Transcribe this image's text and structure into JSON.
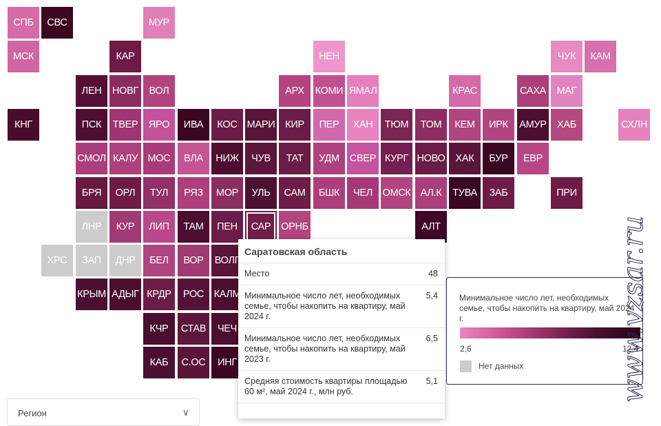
{
  "colors": {
    "legend_gradient": [
      "#ea85c0",
      "#c94f90",
      "#8c2a5e",
      "#4a0f30",
      "#2a0418"
    ],
    "no_data": "#cccccc"
  },
  "regions": [
    {
      "code": "СПБ",
      "col": 0,
      "row": 0,
      "color": "#d76aa8"
    },
    {
      "code": "СВС",
      "col": 1,
      "row": 0,
      "color": "#3c0820"
    },
    {
      "code": "МУР",
      "col": 4,
      "row": 0,
      "color": "#e07fb8"
    },
    {
      "code": "МСК",
      "col": 0,
      "row": 1,
      "color": "#cf65a2"
    },
    {
      "code": "КАР",
      "col": 3,
      "row": 1,
      "color": "#6e1a46"
    },
    {
      "code": "НЕН",
      "col": 9,
      "row": 1,
      "color": "#ee96cb"
    },
    {
      "code": "ЧУК",
      "col": 16,
      "row": 1,
      "color": "#e68ac2"
    },
    {
      "code": "КАМ",
      "col": 17,
      "row": 1,
      "color": "#d670ac"
    },
    {
      "code": "ЛЕН",
      "col": 2,
      "row": 2,
      "color": "#560f34"
    },
    {
      "code": "НОВГ",
      "col": 3,
      "row": 2,
      "color": "#8b2c5f"
    },
    {
      "code": "ВОЛ",
      "col": 4,
      "row": 2,
      "color": "#b1447f"
    },
    {
      "code": "АРХ",
      "col": 8,
      "row": 2,
      "color": "#b4437f"
    },
    {
      "code": "КОМИ",
      "col": 9,
      "row": 2,
      "color": "#c1508f"
    },
    {
      "code": "ЯМАЛ",
      "col": 10,
      "row": 2,
      "color": "#e77fbd"
    },
    {
      "code": "КРАС",
      "col": 13,
      "row": 2,
      "color": "#d56aa8"
    },
    {
      "code": "САХА",
      "col": 15,
      "row": 2,
      "color": "#ac3f7a"
    },
    {
      "code": "МАГ",
      "col": 16,
      "row": 2,
      "color": "#e284bd"
    },
    {
      "code": "КНГ",
      "col": 0,
      "row": 3,
      "color": "#4a0c2c"
    },
    {
      "code": "ПСК",
      "col": 2,
      "row": 3,
      "color": "#4d0e30"
    },
    {
      "code": "ТВЕР",
      "col": 3,
      "row": 3,
      "color": "#9c3570"
    },
    {
      "code": "ЯРО",
      "col": 4,
      "row": 3,
      "color": "#c4529a"
    },
    {
      "code": "ИВА",
      "col": 5,
      "row": 3,
      "color": "#3a0722"
    },
    {
      "code": "КОС",
      "col": 6,
      "row": 3,
      "color": "#6b1d47"
    },
    {
      "code": "МАРИ",
      "col": 7,
      "row": 3,
      "color": "#591538"
    },
    {
      "code": "КИР",
      "col": 8,
      "row": 3,
      "color": "#6b1d49"
    },
    {
      "code": "ПЕР",
      "col": 9,
      "row": 3,
      "color": "#d069aa"
    },
    {
      "code": "ХАН",
      "col": 10,
      "row": 3,
      "color": "#e883c0"
    },
    {
      "code": "ТЮМ",
      "col": 11,
      "row": 3,
      "color": "#7a2453"
    },
    {
      "code": "ТОМ",
      "col": 12,
      "row": 3,
      "color": "#8d2d61"
    },
    {
      "code": "КЕМ",
      "col": 13,
      "row": 3,
      "color": "#b2447f"
    },
    {
      "code": "ИРК",
      "col": 14,
      "row": 3,
      "color": "#b14580"
    },
    {
      "code": "АМУР",
      "col": 15,
      "row": 3,
      "color": "#4b0e2f"
    },
    {
      "code": "ХАБ",
      "col": 16,
      "row": 3,
      "color": "#b3497f"
    },
    {
      "code": "СХЛН",
      "col": 18,
      "row": 3,
      "color": "#e582bc"
    },
    {
      "code": "СМОЛ",
      "col": 2,
      "row": 4,
      "color": "#aa3e7a"
    },
    {
      "code": "КАЛУ",
      "col": 3,
      "row": 4,
      "color": "#ac427c"
    },
    {
      "code": "МОС",
      "col": 4,
      "row": 4,
      "color": "#a83c78"
    },
    {
      "code": "ВЛА",
      "col": 5,
      "row": 4,
      "color": "#c55495"
    },
    {
      "code": "НИЖ",
      "col": 6,
      "row": 4,
      "color": "#4d0e30"
    },
    {
      "code": "ЧУВ",
      "col": 7,
      "row": 4,
      "color": "#5b1639"
    },
    {
      "code": "ТАТ",
      "col": 8,
      "row": 4,
      "color": "#6a1c47"
    },
    {
      "code": "УДМ",
      "col": 9,
      "row": 4,
      "color": "#ae4280"
    },
    {
      "code": "СВЕР",
      "col": 10,
      "row": 4,
      "color": "#c553a0"
    },
    {
      "code": "КУРГ",
      "col": 11,
      "row": 4,
      "color": "#761e4f"
    },
    {
      "code": "НОВО",
      "col": 12,
      "row": 4,
      "color": "#6a1c47"
    },
    {
      "code": "ХАК",
      "col": 13,
      "row": 4,
      "color": "#5a1539"
    },
    {
      "code": "БУР",
      "col": 14,
      "row": 4,
      "color": "#3a0722"
    },
    {
      "code": "ЕВР",
      "col": 15,
      "row": 4,
      "color": "#b74687"
    },
    {
      "code": "БРЯ",
      "col": 2,
      "row": 5,
      "color": "#67193f"
    },
    {
      "code": "ОРЛ",
      "col": 3,
      "row": 5,
      "color": "#6e1c46"
    },
    {
      "code": "ТУЛ",
      "col": 4,
      "row": 5,
      "color": "#912f67"
    },
    {
      "code": "РЯЗ",
      "col": 5,
      "row": 5,
      "color": "#ad3f7c"
    },
    {
      "code": "МОР",
      "col": 6,
      "row": 5,
      "color": "#8a2e5e"
    },
    {
      "code": "УЛЬ",
      "col": 7,
      "row": 5,
      "color": "#4d1030"
    },
    {
      "code": "САМ",
      "col": 8,
      "row": 5,
      "color": "#6f1d48"
    },
    {
      "code": "БШК",
      "col": 9,
      "row": 5,
      "color": "#ad3e7c"
    },
    {
      "code": "ЧЕЛ",
      "col": 10,
      "row": 5,
      "color": "#a63877"
    },
    {
      "code": "ОМСК",
      "col": 11,
      "row": 5,
      "color": "#b24580"
    },
    {
      "code": "АЛ.К",
      "col": 12,
      "row": 5,
      "color": "#aa3f7b"
    },
    {
      "code": "ТУВА",
      "col": 13,
      "row": 5,
      "color": "#3a0722"
    },
    {
      "code": "ЗАБ",
      "col": 14,
      "row": 5,
      "color": "#6d1c47"
    },
    {
      "code": "ПРИ",
      "col": 16,
      "row": 5,
      "color": "#6e1c47"
    },
    {
      "code": "ЛНР",
      "col": 2,
      "row": 6,
      "color": "#cccccc",
      "nodata": true
    },
    {
      "code": "КУР",
      "col": 3,
      "row": 6,
      "color": "#a13b73"
    },
    {
      "code": "ЛИП",
      "col": 4,
      "row": 6,
      "color": "#b6488b"
    },
    {
      "code": "ТАМ",
      "col": 5,
      "row": 6,
      "color": "#4b0e2f"
    },
    {
      "code": "ПЕН",
      "col": 6,
      "row": 6,
      "color": "#6b1d47"
    },
    {
      "code": "САР",
      "col": 7,
      "row": 6,
      "color": "#6f1f49",
      "hover": true
    },
    {
      "code": "ОРНБ",
      "col": 8,
      "row": 6,
      "color": "#b1457f"
    },
    {
      "code": "АЛТ",
      "col": 12,
      "row": 6,
      "color": "#3e0826"
    },
    {
      "code": "ХРС",
      "col": 1,
      "row": 7,
      "color": "#cccccc",
      "nodata": true
    },
    {
      "code": "ЗАП",
      "col": 2,
      "row": 7,
      "color": "#cccccc",
      "nodata": true
    },
    {
      "code": "ДНР",
      "col": 3,
      "row": 7,
      "color": "#cccccc",
      "nodata": true
    },
    {
      "code": "БЕЛ",
      "col": 4,
      "row": 7,
      "color": "#b0447f"
    },
    {
      "code": "ВОР",
      "col": 5,
      "row": 7,
      "color": "#a03a72"
    },
    {
      "code": "ВОЛГ",
      "col": 6,
      "row": 7,
      "color": "#5a1539"
    },
    {
      "code": "КРЫМ",
      "col": 2,
      "row": 8,
      "color": "#4a0f30"
    },
    {
      "code": "АДЫГ",
      "col": 3,
      "row": 8,
      "color": "#4b0e2f"
    },
    {
      "code": "КРДР",
      "col": 4,
      "row": 8,
      "color": "#6b1d47"
    },
    {
      "code": "РОС",
      "col": 5,
      "row": 8,
      "color": "#561236"
    },
    {
      "code": "КАЛМ",
      "col": 6,
      "row": 8,
      "color": "#4c0e2f"
    },
    {
      "code": "КЧР",
      "col": 4,
      "row": 9,
      "color": "#4a0e2e"
    },
    {
      "code": "СТАВ",
      "col": 5,
      "row": 9,
      "color": "#5d173c"
    },
    {
      "code": "ЧЕЧ",
      "col": 6,
      "row": 9,
      "color": "#4b0e2f"
    },
    {
      "code": "КАБ",
      "col": 4,
      "row": 10,
      "color": "#4a0f30"
    },
    {
      "code": "С.ОС",
      "col": 5,
      "row": 10,
      "color": "#5b1539"
    },
    {
      "code": "ИНГ",
      "col": 6,
      "row": 10,
      "color": "#3d0724"
    }
  ],
  "tooltip": {
    "title": "Саратовская область",
    "rows": [
      {
        "label": "Место",
        "value": "48"
      },
      {
        "label": "Минимальное число лет, необходимых семье, чтобы накопить на квартиру, май 2024 г.",
        "value": "5,4"
      },
      {
        "label": "Минимальное число лет, необходимых семье, чтобы накопить на квартиру, май 2023 г.",
        "value": "6,5"
      },
      {
        "label": "Средняя стоимость квартиры площадью 60 м², май 2024 г., млн руб.",
        "value": "5,1"
      }
    ]
  },
  "legend": {
    "title": "Минимальное число лет, необходимых семье, чтобы накопить на квартиру, май 2024 г.",
    "min": "2,6",
    "max": "12,4",
    "no_data": "Нет данных"
  },
  "select": {
    "value": "Регион",
    "arrow_icon": "chevron-down-icon"
  },
  "watermark": {
    "text": "www.vzsar.ru"
  }
}
